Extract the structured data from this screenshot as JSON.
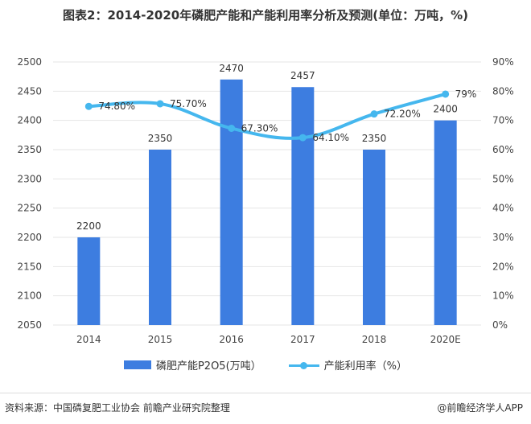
{
  "title": "图表2：2014-2020年磷肥产能和产能利用率分析及预测(单位：万吨，%)",
  "colors": {
    "bar": "#3d7de0",
    "line": "#45b7ee",
    "grid": "#e6e6e6"
  },
  "chart_data": {
    "type": "bar",
    "categories": [
      "2014",
      "2015",
      "2016",
      "2017",
      "2018",
      "2020E"
    ],
    "series": [
      {
        "name": "磷肥产能P2O5(万吨）",
        "type": "bar",
        "axis": "left",
        "values": [
          2200,
          2350,
          2470,
          2457,
          2350,
          2400
        ],
        "labels": [
          "2200",
          "2350",
          "2470",
          "2457",
          "2350",
          "2400"
        ]
      },
      {
        "name": "产能利用率（%）",
        "type": "line",
        "axis": "right",
        "values": [
          74.8,
          75.7,
          67.3,
          64.1,
          72.2,
          79
        ],
        "labels": [
          "74.80%",
          "75.70%",
          "67.30%",
          "64.10%",
          "72.20%",
          "79%"
        ]
      }
    ],
    "y_left": {
      "min": 2050,
      "max": 2500,
      "ticks": [
        "2050",
        "2100",
        "2150",
        "2200",
        "2250",
        "2300",
        "2350",
        "2400",
        "2450",
        "2500"
      ]
    },
    "y_right": {
      "min": 0,
      "max": 90,
      "ticks": [
        "0%",
        "10%",
        "20%",
        "30%",
        "40%",
        "50%",
        "60%",
        "70%",
        "80%",
        "90%"
      ]
    },
    "grid": true,
    "legend": "bottom"
  },
  "legend": {
    "bar_label": "磷肥产能P2O5(万吨）",
    "line_label": "产能利用率（%）"
  },
  "footer": {
    "source": "资料来源：中国磷复肥工业协会 前瞻产业研究院整理",
    "brand": "@前瞻经济学人APP"
  }
}
